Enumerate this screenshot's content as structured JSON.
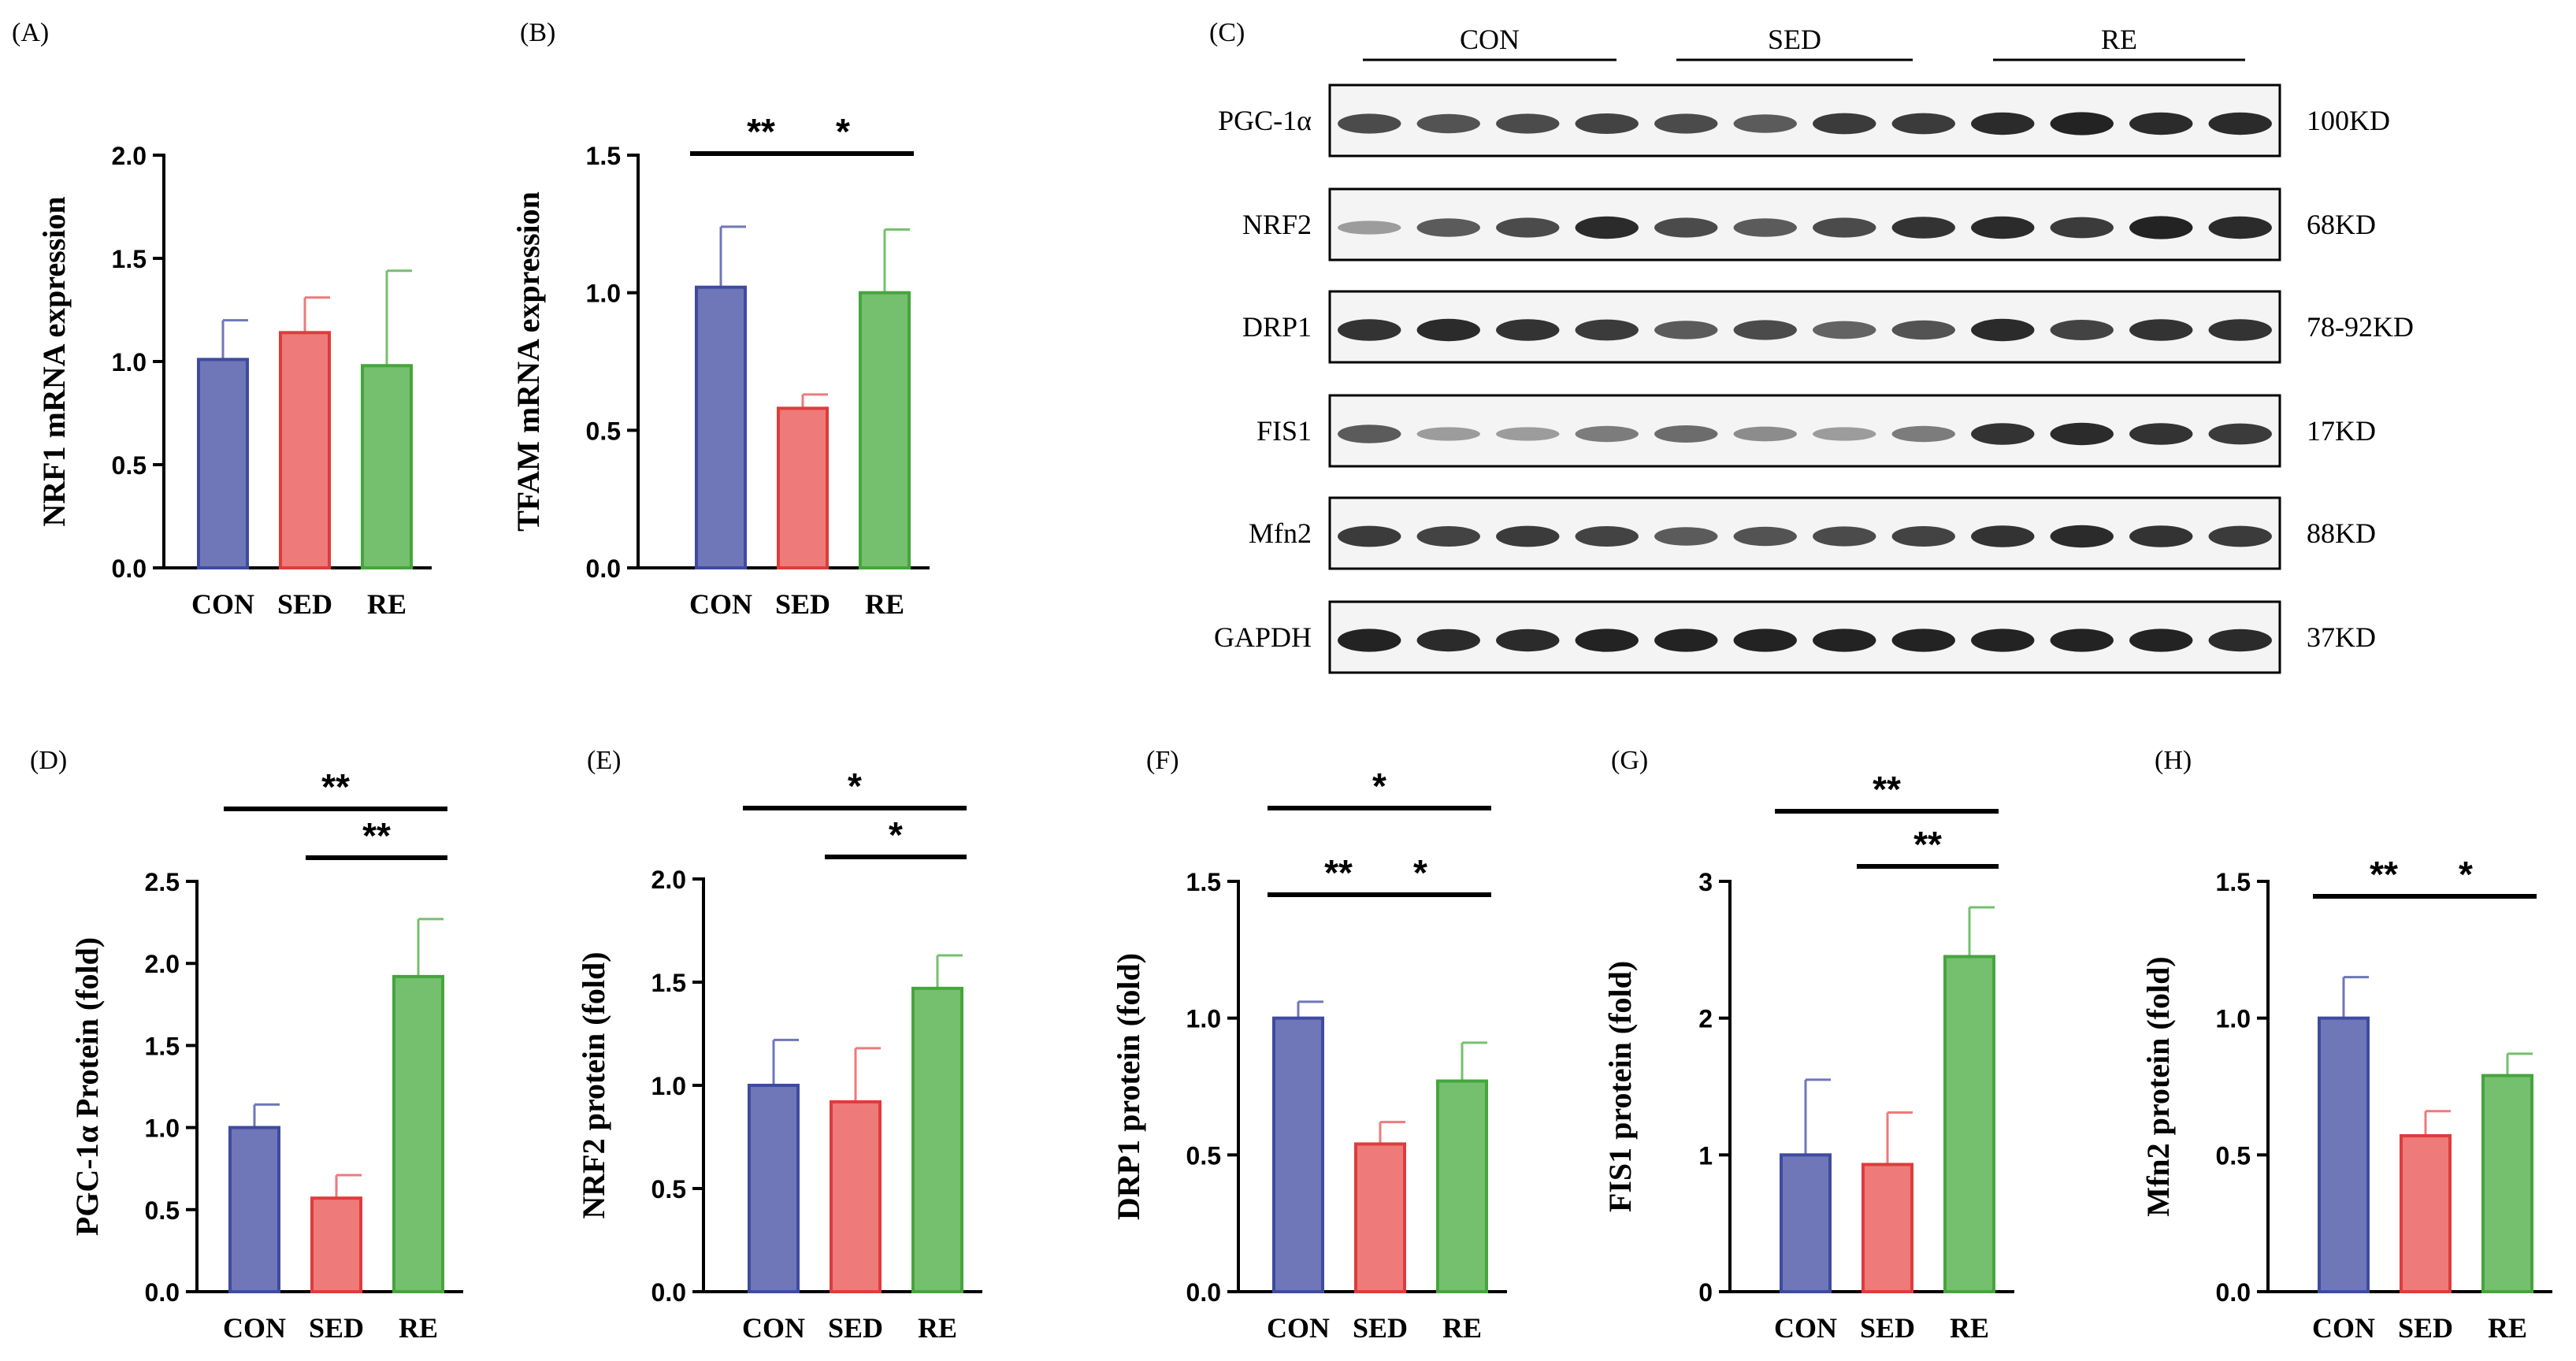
{
  "colors": {
    "CON": {
      "fill": "#6f77b8",
      "stroke": "#3f4ba0"
    },
    "SED": {
      "fill": "#ef7a7a",
      "stroke": "#de3c3c"
    },
    "RE": {
      "fill": "#74c06e",
      "stroke": "#46a53d"
    },
    "axis": "#000000",
    "band": "#1a1a1a"
  },
  "chart_data": [
    {
      "panel": "(A)",
      "type": "bar",
      "ylabel": "NRF1 mRNA expression",
      "categories": [
        "CON",
        "SED",
        "RE"
      ],
      "values": [
        1.01,
        1.14,
        0.98
      ],
      "errors": [
        0.19,
        0.17,
        0.46
      ],
      "ylim": [
        0,
        2.0
      ],
      "yticks": [
        0.0,
        0.5,
        1.0,
        1.5,
        2.0
      ],
      "tick_labels": [
        "0.0",
        "0.5",
        "1.0",
        "1.5",
        "2.0"
      ],
      "significance": []
    },
    {
      "panel": "(B)",
      "type": "bar",
      "ylabel": "TFAM mRNA expression",
      "categories": [
        "CON",
        "SED",
        "RE"
      ],
      "values": [
        1.02,
        0.58,
        1.0
      ],
      "errors": [
        0.22,
        0.05,
        0.23
      ],
      "ylim": [
        0,
        1.5
      ],
      "yticks": [
        0.0,
        0.5,
        1.0,
        1.5
      ],
      "tick_labels": [
        "0.0",
        "0.5",
        "1.0",
        "1.5"
      ],
      "significance": [
        {
          "from": 0,
          "to": 1,
          "label": "**",
          "level": 0
        },
        {
          "from": 1,
          "to": 2,
          "label": "*",
          "level": 0
        }
      ]
    },
    {
      "panel": "(D)",
      "type": "bar",
      "ylabel": "PGC-1α Protein (fold)",
      "categories": [
        "CON",
        "SED",
        "RE"
      ],
      "values": [
        1.0,
        0.57,
        1.92
      ],
      "errors": [
        0.14,
        0.14,
        0.35
      ],
      "ylim": [
        0,
        2.5
      ],
      "yticks": [
        0.0,
        0.5,
        1.0,
        1.5,
        2.0,
        2.5
      ],
      "tick_labels": [
        "0.0",
        "0.5",
        "1.0",
        "1.5",
        "2.0",
        "2.5"
      ],
      "significance": [
        {
          "from": 0,
          "to": 2,
          "label": "**",
          "level": 1
        },
        {
          "from": 1,
          "to": 2,
          "label": "**",
          "level": 0
        }
      ]
    },
    {
      "panel": "(E)",
      "type": "bar",
      "ylabel": "NRF2 protein (fold)",
      "categories": [
        "CON",
        "SED",
        "RE"
      ],
      "values": [
        1.0,
        0.92,
        1.47
      ],
      "errors": [
        0.22,
        0.26,
        0.16
      ],
      "ylim": [
        0,
        2.0
      ],
      "yticks": [
        0.0,
        0.5,
        1.0,
        1.5,
        2.0
      ],
      "tick_labels": [
        "0.0",
        "0.5",
        "1.0",
        "1.5",
        "2.0"
      ],
      "significance": [
        {
          "from": 0,
          "to": 2,
          "label": "*",
          "level": 1
        },
        {
          "from": 1,
          "to": 2,
          "label": "*",
          "level": 0
        }
      ]
    },
    {
      "panel": "(F)",
      "type": "bar",
      "ylabel": "DRP1 protein (fold)",
      "categories": [
        "CON",
        "SED",
        "RE"
      ],
      "values": [
        1.0,
        0.54,
        0.77
      ],
      "errors": [
        0.06,
        0.08,
        0.14
      ],
      "ylim": [
        0,
        1.5
      ],
      "yticks": [
        0.0,
        0.5,
        1.0,
        1.5
      ],
      "tick_labels": [
        "0.0",
        "0.5",
        "1.0",
        "1.5"
      ],
      "significance": [
        {
          "from": 0,
          "to": 2,
          "label": "*",
          "level": 1
        },
        {
          "from": 0,
          "to": 1,
          "label": "**",
          "level": 0
        },
        {
          "from": 1,
          "to": 2,
          "label": "*",
          "level": 0
        }
      ]
    },
    {
      "panel": "(G)",
      "type": "bar",
      "ylabel": "FIS1 protein (fold)",
      "categories": [
        "CON",
        "SED",
        "RE"
      ],
      "values": [
        1.0,
        0.93,
        2.45
      ],
      "errors": [
        0.55,
        0.38,
        0.36
      ],
      "ylim": [
        0,
        3
      ],
      "yticks": [
        0,
        1,
        2,
        3
      ],
      "tick_labels": [
        "0",
        "1",
        "2",
        "3"
      ],
      "significance": [
        {
          "from": 0,
          "to": 2,
          "label": "**",
          "level": 1
        },
        {
          "from": 1,
          "to": 2,
          "label": "**",
          "level": 0
        }
      ]
    },
    {
      "panel": "(H)",
      "type": "bar",
      "ylabel": "Mfn2 protein (fold)",
      "categories": [
        "CON",
        "SED",
        "RE"
      ],
      "values": [
        1.0,
        0.57,
        0.79
      ],
      "errors": [
        0.15,
        0.09,
        0.08
      ],
      "ylim": [
        0,
        1.5
      ],
      "yticks": [
        0.0,
        0.5,
        1.0,
        1.5
      ],
      "tick_labels": [
        "0.0",
        "0.5",
        "1.0",
        "1.5"
      ],
      "significance": [
        {
          "from": 0,
          "to": 1,
          "label": "**",
          "level": 0
        },
        {
          "from": 1,
          "to": 2,
          "label": "*",
          "level": 0
        }
      ]
    }
  ],
  "western_blot": {
    "panel": "(C)",
    "groups": [
      "CON",
      "SED",
      "RE"
    ],
    "lanes_per_group": 4,
    "rows": [
      {
        "protein": "PGC-1α",
        "size": "100KD",
        "intensity": [
          0.7,
          0.65,
          0.7,
          0.75,
          0.7,
          0.6,
          0.8,
          0.8,
          0.9,
          0.95,
          0.9,
          0.9
        ]
      },
      {
        "protein": "NRF2",
        "size": "68KD",
        "intensity": [
          0.2,
          0.6,
          0.7,
          0.9,
          0.7,
          0.6,
          0.7,
          0.85,
          0.9,
          0.8,
          0.95,
          0.9
        ]
      },
      {
        "protein": "DRP1",
        "size": "78-92KD",
        "intensity": [
          0.85,
          0.9,
          0.85,
          0.8,
          0.6,
          0.7,
          0.55,
          0.65,
          0.9,
          0.75,
          0.85,
          0.85
        ]
      },
      {
        "protein": "FIS1",
        "size": "17KD",
        "intensity": [
          0.6,
          0.2,
          0.2,
          0.4,
          0.5,
          0.3,
          0.2,
          0.4,
          0.85,
          0.9,
          0.85,
          0.8
        ]
      },
      {
        "protein": "Mfn2",
        "size": "88KD",
        "intensity": [
          0.8,
          0.75,
          0.8,
          0.75,
          0.6,
          0.65,
          0.7,
          0.75,
          0.85,
          0.9,
          0.85,
          0.8
        ]
      },
      {
        "protein": "GAPDH",
        "size": "37KD",
        "intensity": [
          0.95,
          0.9,
          0.9,
          0.95,
          0.95,
          0.95,
          0.95,
          0.95,
          0.95,
          0.95,
          0.95,
          0.9
        ]
      }
    ]
  }
}
